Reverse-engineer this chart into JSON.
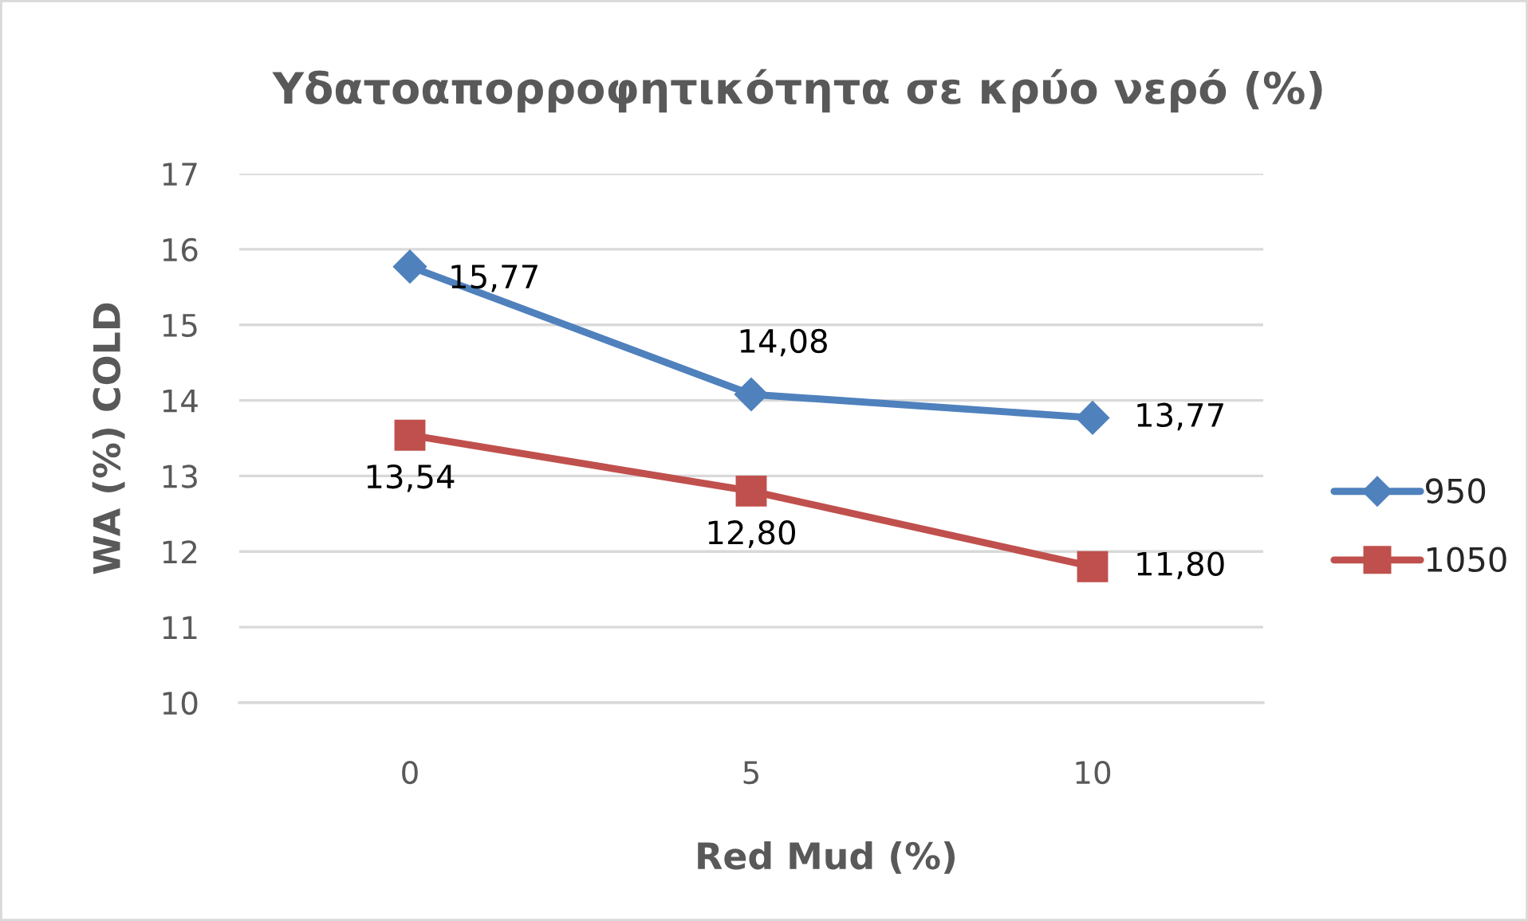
{
  "chart_data": {
    "type": "line",
    "title": "Υδατοαπορροφητικότητα σε κρύο νερό (%)",
    "xlabel": "Red Mud (%)",
    "ylabel": "WA (%) COLD",
    "categories": [
      "0",
      "5",
      "10"
    ],
    "series": [
      {
        "name": "950",
        "color": "#4f81bd",
        "marker": "diamond",
        "values": [
          15.77,
          14.08,
          13.77
        ],
        "value_labels": [
          "15,77",
          "14,08",
          "13,77"
        ]
      },
      {
        "name": "1050",
        "color": "#c0504d",
        "marker": "square",
        "values": [
          13.54,
          12.8,
          11.8
        ],
        "value_labels": [
          "13,54",
          "12,80",
          "11,80"
        ]
      }
    ],
    "ylim": [
      10,
      17
    ],
    "yticks": [
      10,
      11,
      12,
      13,
      14,
      15,
      16,
      17
    ],
    "grid": "y",
    "legend": "right",
    "line_style": "solid"
  }
}
